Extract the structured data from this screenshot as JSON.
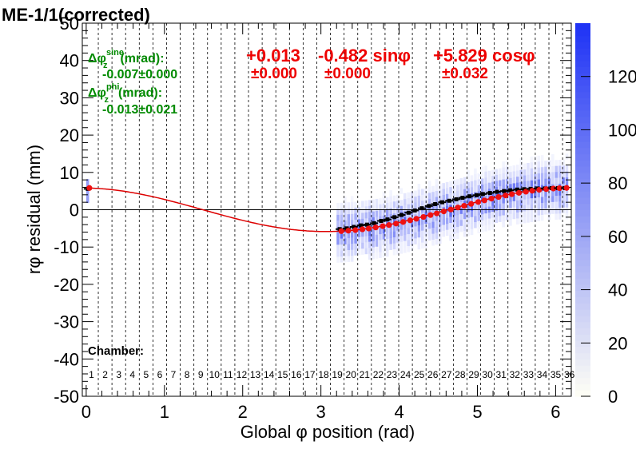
{
  "chart_data": {
    "type": "scatter",
    "title": "ME-1/1(corrected)",
    "xlabel": "Global φ position (rad)",
    "ylabel": "rφ residual (mm)",
    "xlim": [
      -0.05,
      6.2
    ],
    "ylim": [
      -50,
      50
    ],
    "x_ticks": [
      "0",
      "1",
      "2",
      "3",
      "4",
      "5",
      "6"
    ],
    "y_ticks": [
      "-50",
      "-40",
      "-30",
      "-20",
      "-10",
      "0",
      "10",
      "20",
      "30",
      "40",
      "50"
    ],
    "y_ticks_display": [
      "-50",
      "-40",
      "-30",
      "-20",
      "-10",
      "0",
      "10",
      "20",
      "30",
      "40",
      "50"
    ],
    "colorbar": {
      "min": 0,
      "max": 140,
      "ticks": [
        "0",
        "20",
        "40",
        "60",
        "80",
        "100",
        "120"
      ]
    },
    "fit": {
      "formula_parts": [
        "+0.013",
        "-0.482 sinφ",
        "+5.829 cosφ"
      ],
      "error_parts": [
        "±0.000",
        "±0.000",
        "±0.032"
      ],
      "a": 0.013,
      "b": -0.482,
      "c": 5.829
    },
    "params": {
      "sine_label": "Δφ",
      "sine_sup": "sine",
      "sine_sub": "z",
      "sine_unit": "(mrad):",
      "sine_value": "-0.007±0.000",
      "phi_label": "Δφ",
      "phi_sup": "phi",
      "phi_sub": "z",
      "phi_unit": "(mrad):",
      "phi_value": "-0.013±0.021"
    },
    "chamber_label": "Chamber:",
    "chambers": [
      "1",
      "2",
      "3",
      "4",
      "5",
      "6",
      "7",
      "8",
      "9",
      "10",
      "11",
      "12",
      "13",
      "14",
      "15",
      "16",
      "17",
      "18",
      "19",
      "20",
      "21",
      "22",
      "23",
      "24",
      "25",
      "26",
      "27",
      "28",
      "29",
      "30",
      "31",
      "32",
      "33",
      "34",
      "35",
      "36"
    ],
    "profile_points_x": [
      0.02,
      3.24,
      3.33,
      3.42,
      3.51,
      3.59,
      3.68,
      3.77,
      3.85,
      3.94,
      4.03,
      4.12,
      4.2,
      4.29,
      4.38,
      4.46,
      4.55,
      4.64,
      4.73,
      4.81,
      4.9,
      4.99,
      5.07,
      5.16,
      5.25,
      5.34,
      5.42,
      5.51,
      5.6,
      5.68,
      5.77,
      5.86,
      5.95,
      6.03,
      6.12
    ],
    "profile_points_y": [
      5.6,
      -5.2,
      -5.0,
      -4.6,
      -4.2,
      -4.0,
      -3.6,
      -3.0,
      -2.6,
      -2.0,
      -1.4,
      -0.8,
      -0.2,
      0.4,
      1.0,
      1.5,
      2.0,
      2.4,
      2.8,
      3.2,
      3.6,
      3.9,
      4.2,
      4.5,
      4.8,
      5.0,
      5.2,
      5.4,
      5.5,
      5.6,
      5.7,
      5.7,
      5.8,
      5.8,
      5.8
    ]
  }
}
